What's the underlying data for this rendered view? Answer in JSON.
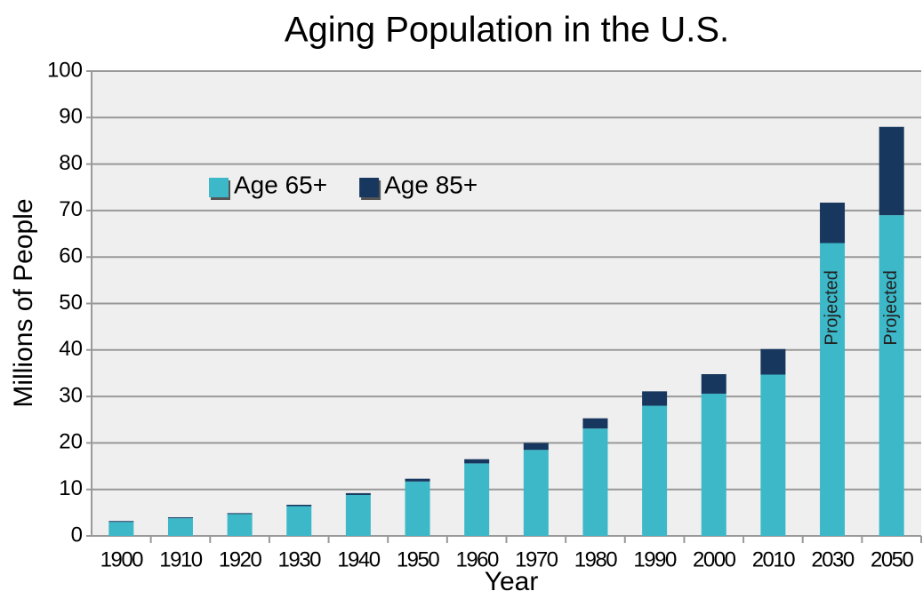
{
  "chart_data": {
    "type": "bar",
    "stacked": true,
    "title": "Aging Population in the U.S.",
    "x_label": "Year",
    "y_label": "Millions of People",
    "categories": [
      "1900",
      "1910",
      "1920",
      "1930",
      "1940",
      "1950",
      "1960",
      "1970",
      "1980",
      "1990",
      "2000",
      "2010",
      "2030",
      "2050"
    ],
    "series": [
      {
        "name": "Age 65+",
        "color": "#3cb8c8",
        "values": [
          3.0,
          3.8,
          4.7,
          6.4,
          8.8,
          11.7,
          15.6,
          18.5,
          23.1,
          28.0,
          30.6,
          34.7,
          63.0,
          69.0
        ]
      },
      {
        "name": "Age 85+",
        "color": "#17375e",
        "values": [
          0.2,
          0.2,
          0.2,
          0.3,
          0.4,
          0.6,
          0.9,
          1.5,
          2.2,
          3.1,
          4.2,
          5.5,
          8.7,
          19.0
        ]
      }
    ],
    "annotations": [
      {
        "text": "Projected",
        "category": "2030"
      },
      {
        "text": "Projected",
        "category": "2050"
      }
    ],
    "ylim": [
      0,
      100
    ],
    "yticks": [
      0,
      10,
      20,
      30,
      40,
      50,
      60,
      70,
      80,
      90,
      100
    ],
    "grid": true
  }
}
